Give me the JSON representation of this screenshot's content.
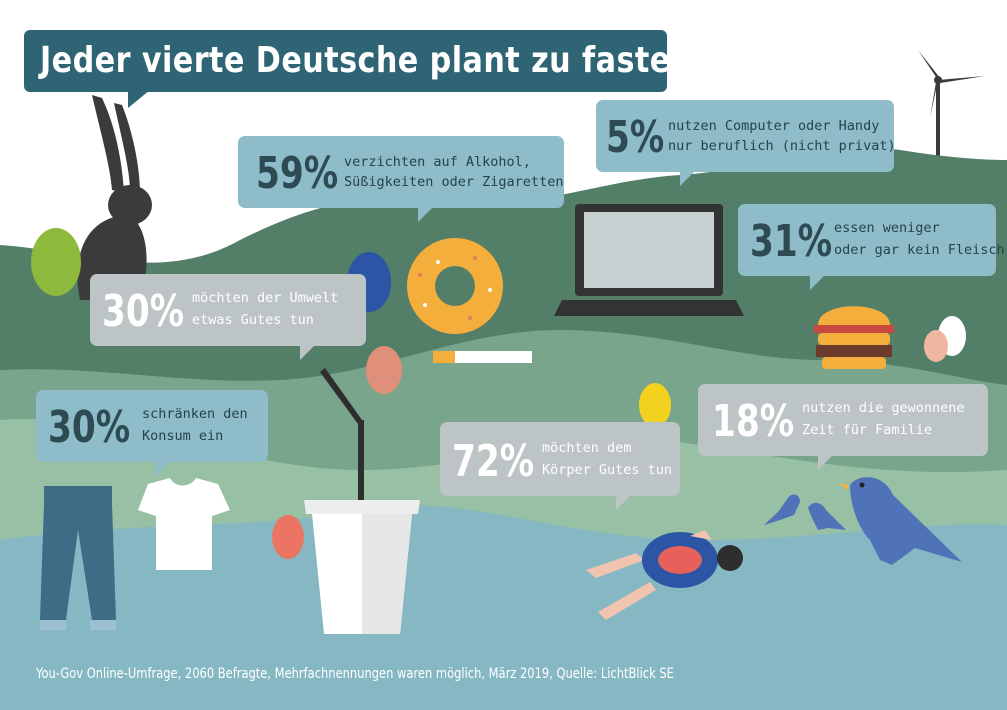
{
  "title": "Jeder vierte Deutsche plant zu fasten",
  "source": "You-Gov Online-Umfrage, 2060 Befragte, Mehrfachnennungen waren möglich, März 2019, Quelle: LichtBlick SE",
  "colors": {
    "title_bg": "#2e6473",
    "bubble_blue": "#8ebcc9",
    "bubble_gray": "#bcc4c6",
    "hill_dark": "#537e67",
    "hill_mid": "#78a58b",
    "water": "#86b8c4"
  },
  "chart_data": {
    "type": "table",
    "title": "Jeder vierte Deutsche plant zu fasten",
    "unit": "%",
    "items": [
      {
        "value": 59,
        "label": "59%",
        "text": [
          "verzichten auf Alkohol,",
          "Süßigkeiten oder Zigaretten"
        ],
        "icon": "donut-icon"
      },
      {
        "value": 5,
        "label": "5%",
        "text": [
          "nutzen Computer oder Handy",
          "nur beruflich (nicht privat)"
        ],
        "icon": "laptop-icon"
      },
      {
        "value": 31,
        "label": "31%",
        "text": [
          "essen weniger",
          "oder gar kein Fleisch"
        ],
        "icon": "burger-icon"
      },
      {
        "value": 30,
        "label": "30%",
        "text": [
          "möchten der Umwelt",
          "etwas Gutes tun"
        ],
        "icon": "cup-icon"
      },
      {
        "value": 30,
        "label": "30%",
        "text": [
          "schränken den",
          "Konsum ein"
        ],
        "icon": "clothes-icon"
      },
      {
        "value": 18,
        "label": "18%",
        "text": [
          "nutzen die gewonnene",
          "Zeit für Familie"
        ],
        "icon": "birds-icon"
      },
      {
        "value": 72,
        "label": "72%",
        "text": [
          "möchten dem",
          "Körper Gutes tun"
        ],
        "icon": "swimmer-icon"
      }
    ]
  }
}
